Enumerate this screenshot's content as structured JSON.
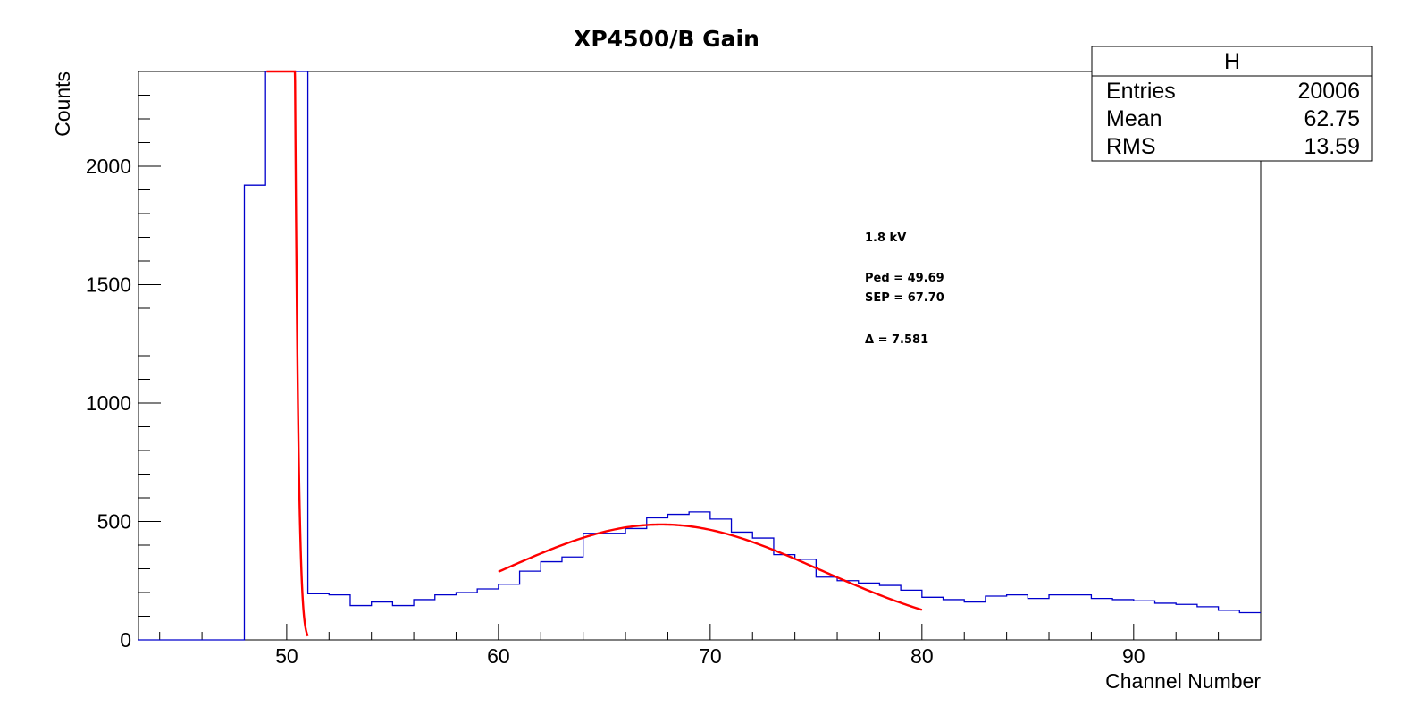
{
  "chart_data": {
    "type": "histogram",
    "title": "XP4500/B Gain",
    "xlabel": "Channel Number",
    "ylabel": "Counts",
    "xlim": [
      43,
      96
    ],
    "ylim": [
      0,
      2400
    ],
    "x_ticks": [
      50,
      60,
      70,
      80,
      90
    ],
    "y_ticks": [
      0,
      500,
      1000,
      1500,
      2000
    ],
    "histogram": {
      "name": "H",
      "color": "#0000cc",
      "bin_edges": [
        43,
        44,
        45,
        46,
        47,
        48,
        49,
        50,
        51,
        52,
        53,
        54,
        55,
        56,
        57,
        58,
        59,
        60,
        61,
        62,
        63,
        64,
        65,
        66,
        67,
        68,
        69,
        70,
        71,
        72,
        73,
        74,
        75,
        76,
        77,
        78,
        79,
        80,
        81,
        82,
        83,
        84,
        85,
        86,
        87,
        88,
        89,
        90,
        91,
        92,
        93,
        94,
        95,
        96
      ],
      "counts": [
        0,
        0,
        0,
        0,
        0,
        1920,
        2400,
        2400,
        195,
        190,
        145,
        160,
        145,
        170,
        190,
        200,
        215,
        235,
        290,
        330,
        350,
        450,
        450,
        470,
        515,
        530,
        540,
        510,
        455,
        430,
        360,
        340,
        265,
        250,
        240,
        230,
        210,
        180,
        170,
        160,
        185,
        190,
        175,
        190,
        190,
        175,
        170,
        165,
        155,
        150,
        140,
        125,
        115
      ]
    },
    "fits": [
      {
        "name": "pedestal-fit",
        "color": "#ff0000",
        "kind": "gaussian",
        "mean": 49.69,
        "sigma": 0.35,
        "amplitude": 18000,
        "x_range": [
          49.05,
          51.0
        ]
      },
      {
        "name": "sep-fit",
        "color": "#ff0000",
        "kind": "gaussian",
        "mean": 67.7,
        "sigma": 7.5,
        "amplitude": 487,
        "x_range": [
          60,
          80
        ]
      }
    ],
    "annotations": [
      "1.8 kV",
      "Ped = 49.69",
      "SEP = 67.70",
      "Δ = 7.581"
    ]
  },
  "stats_box": {
    "title": "H",
    "rows": [
      {
        "label": "Entries",
        "value": "20006"
      },
      {
        "label": "Mean",
        "value": "62.75"
      },
      {
        "label": "RMS",
        "value": "13.59"
      }
    ]
  }
}
